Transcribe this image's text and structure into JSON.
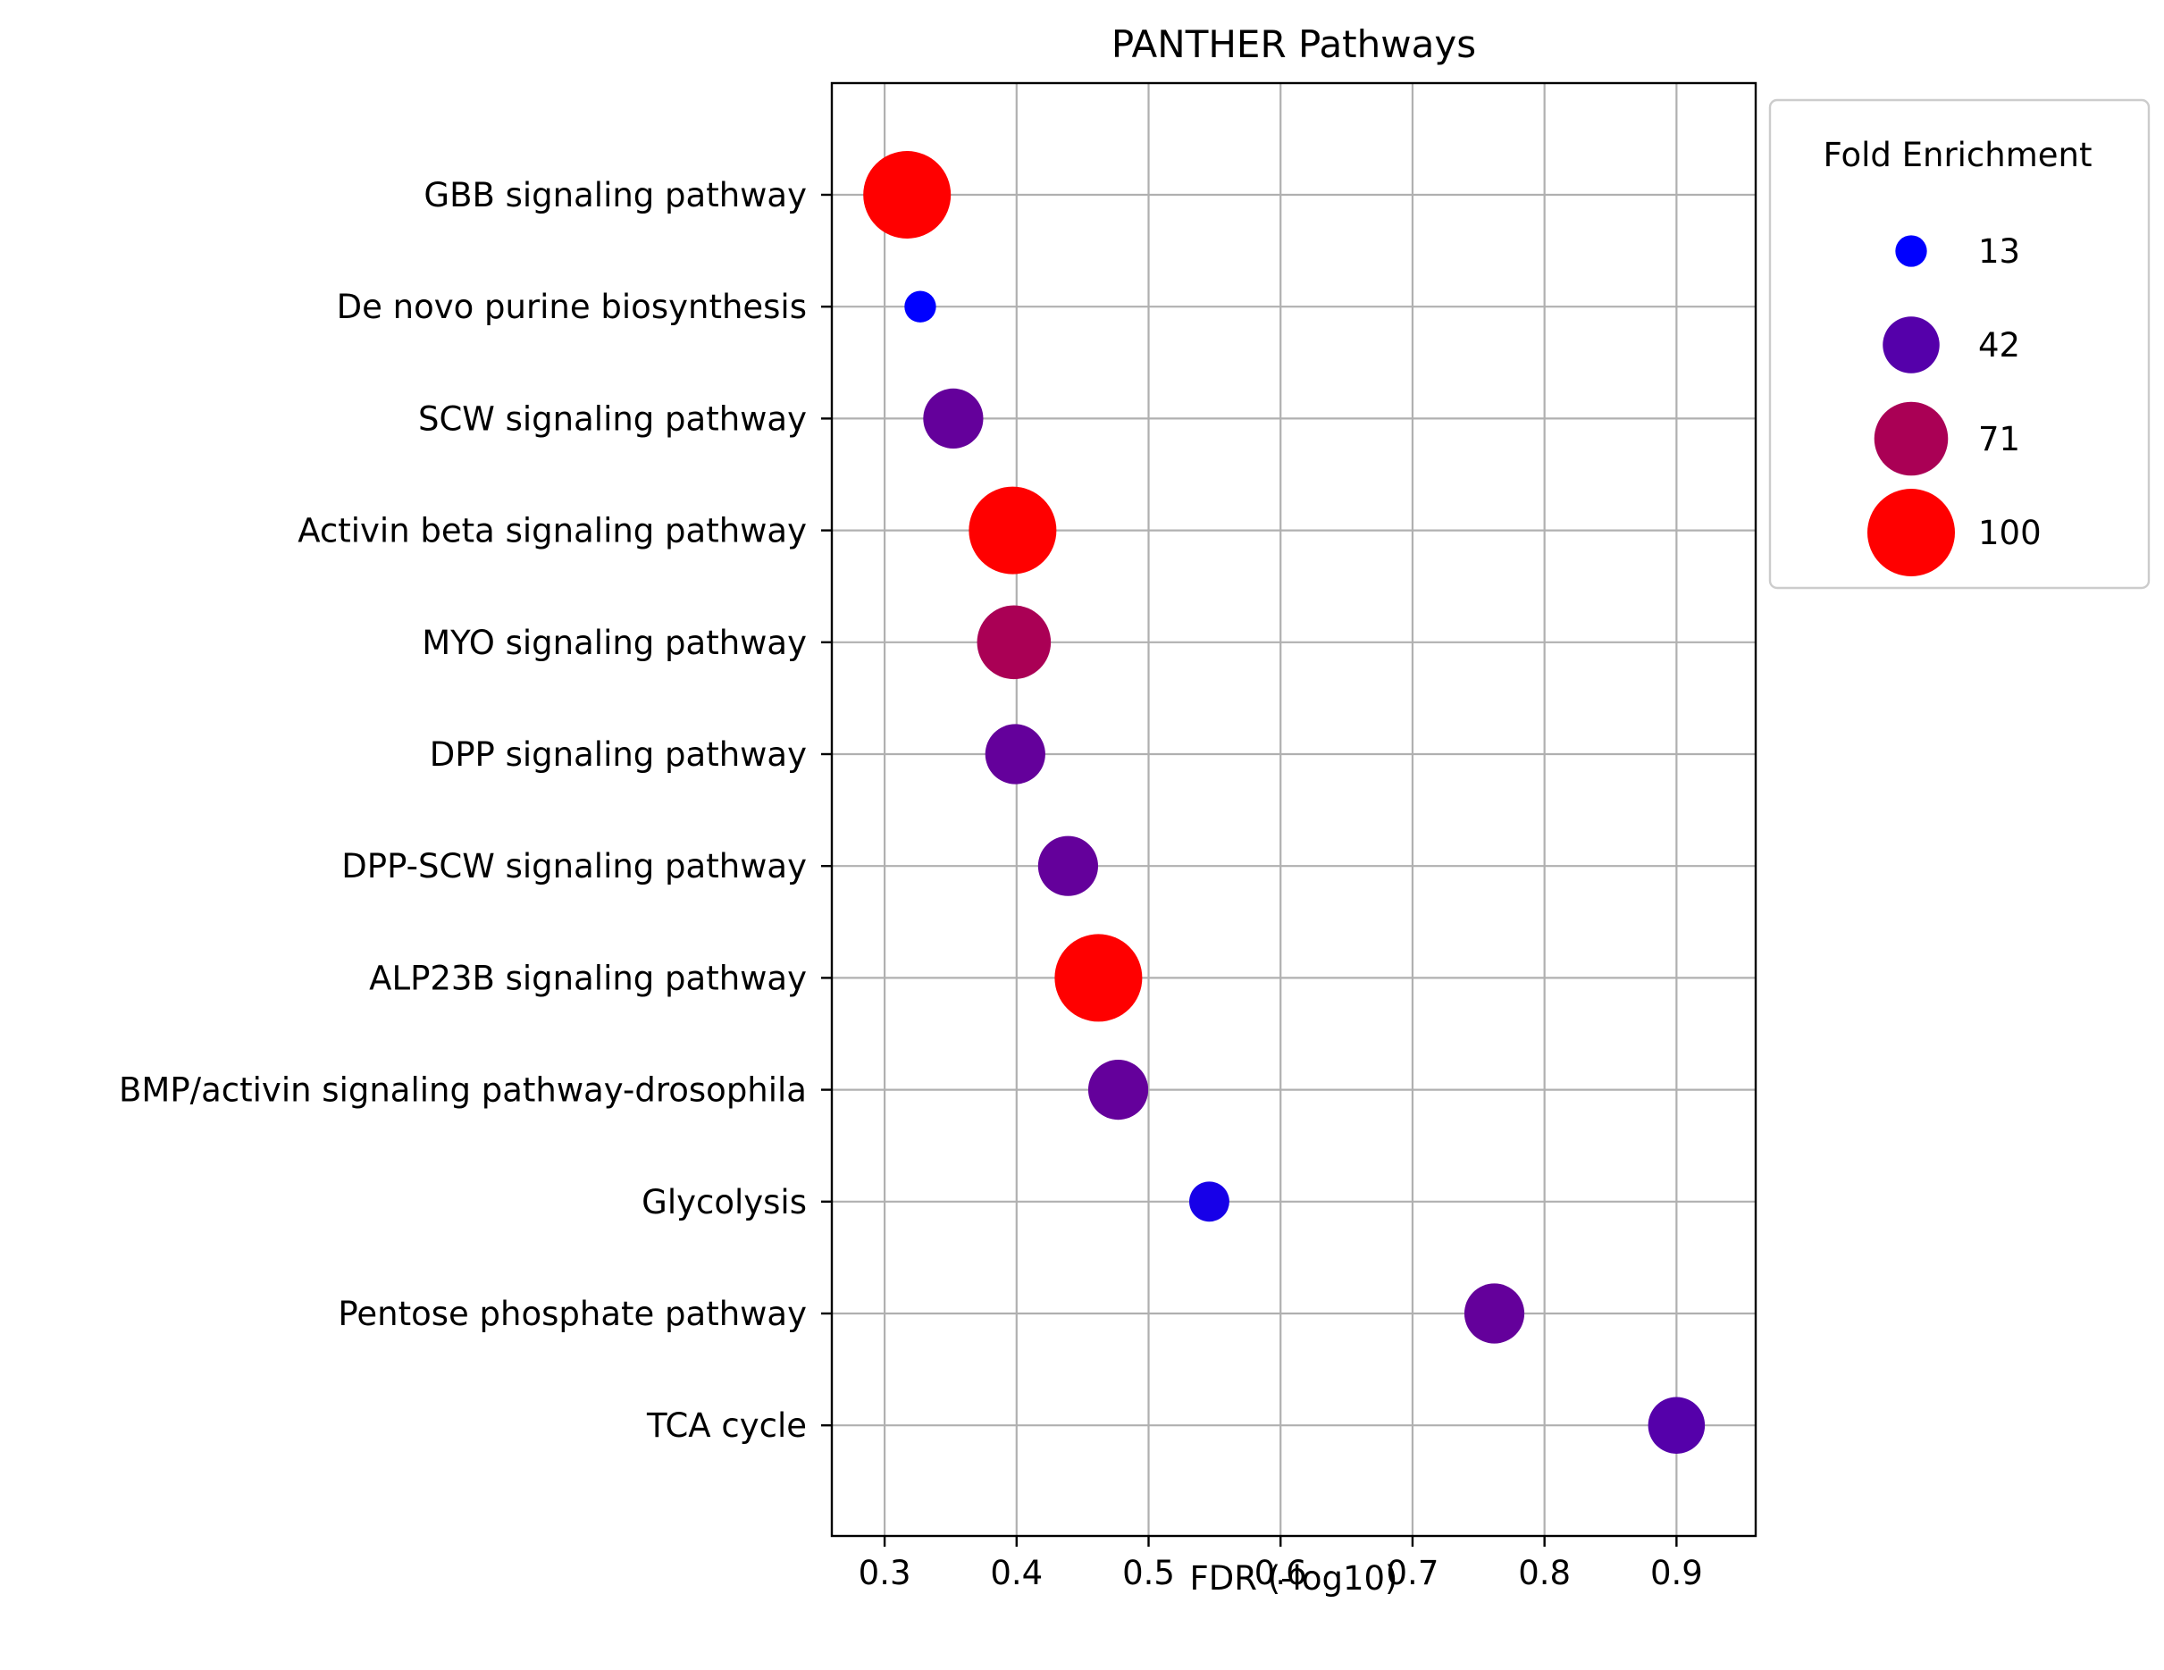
{
  "chart_data": {
    "type": "scatter",
    "title": "PANTHER Pathways",
    "xlabel": "FDR (-log10)",
    "ylabel": "",
    "xlim": [
      0.26,
      0.96
    ],
    "xticks": [
      0.3,
      0.4,
      0.5,
      0.6,
      0.7,
      0.8,
      0.9
    ],
    "xtick_labels": [
      "0.3",
      "0.4",
      "0.5",
      "0.6",
      "0.7",
      "0.8",
      "0.9"
    ],
    "grid": true,
    "categories": [
      "GBB signaling pathway",
      "De novo purine biosynthesis",
      "SCW signaling pathway",
      "Activin beta signaling pathway",
      "MYO signaling pathway",
      "DPP signaling pathway",
      "DPP-SCW signaling pathway",
      "ALP23B signaling pathway",
      "BMP/activin signaling pathway-drosophila",
      "Glycolysis",
      "Pentose phosphate pathway",
      "TCA cycle"
    ],
    "x": [
      0.317,
      0.327,
      0.352,
      0.397,
      0.398,
      0.399,
      0.439,
      0.462,
      0.477,
      0.546,
      0.762,
      0.9
    ],
    "fold_enrichment": [
      100,
      13,
      47,
      100,
      71,
      47,
      47,
      100,
      47,
      21,
      47,
      42
    ],
    "color_scale": {
      "low": "#0000ff",
      "high": "#ff0000",
      "min": 13,
      "max": 100
    },
    "legend": {
      "title": "Fold Enrichment",
      "position": "upper-right-outside",
      "entries": [
        {
          "label": "13",
          "value": 13
        },
        {
          "label": "42",
          "value": 42
        },
        {
          "label": "71",
          "value": 71
        },
        {
          "label": "100",
          "value": 100
        }
      ]
    }
  }
}
